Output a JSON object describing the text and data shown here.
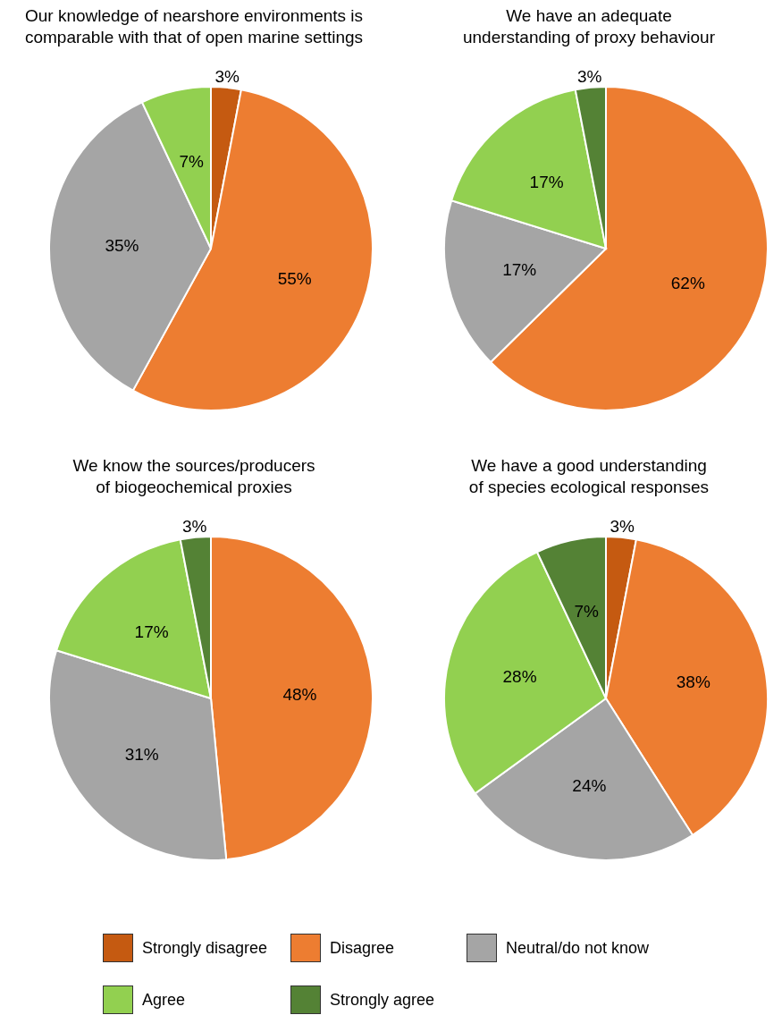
{
  "chart_data": [
    {
      "type": "pie",
      "title": "Our knowledge of nearshore environments is comparable with that of open marine settings",
      "categories": [
        null,
        null,
        null,
        null
      ],
      "values": [
        3,
        55,
        35,
        7
      ],
      "value_labels": [
        "3%",
        "55%",
        "35%",
        "7%"
      ],
      "colors": [
        "#c55a11",
        "#ed7d31",
        "#a5a5a5",
        "#92d050"
      ]
    },
    {
      "type": "pie",
      "title": "We have an adequate understanding of proxy behaviour",
      "categories": [
        null,
        null,
        null,
        null
      ],
      "values": [
        62,
        17,
        17,
        3
      ],
      "value_labels": [
        "62%",
        "17%",
        "17%",
        "3%"
      ],
      "colors": [
        "#ed7d31",
        "#a5a5a5",
        "#92d050",
        "#548235"
      ]
    },
    {
      "type": "pie",
      "title": "We know the sources/producers of biogeochemical proxies",
      "categories": [
        null,
        null,
        null,
        null
      ],
      "values": [
        48,
        31,
        17,
        3
      ],
      "value_labels": [
        "48%",
        "31%",
        "17%",
        "3%"
      ],
      "colors": [
        "#ed7d31",
        "#a5a5a5",
        "#92d050",
        "#548235"
      ]
    },
    {
      "type": "pie",
      "title": "We have a good understanding of species ecological responses",
      "categories": [
        "Strongly disagree",
        "Disagree",
        "Neutral/do not know",
        "Agree",
        "Strongly agree"
      ],
      "values": [
        3,
        38,
        24,
        28,
        7
      ],
      "value_labels": [
        "3%",
        "38%",
        "24%",
        "28%",
        "7%"
      ],
      "colors": [
        "#c55a11",
        "#ed7d31",
        "#a5a5a5",
        "#92d050",
        "#548235"
      ],
      "legend": "bottom"
    }
  ]
}
